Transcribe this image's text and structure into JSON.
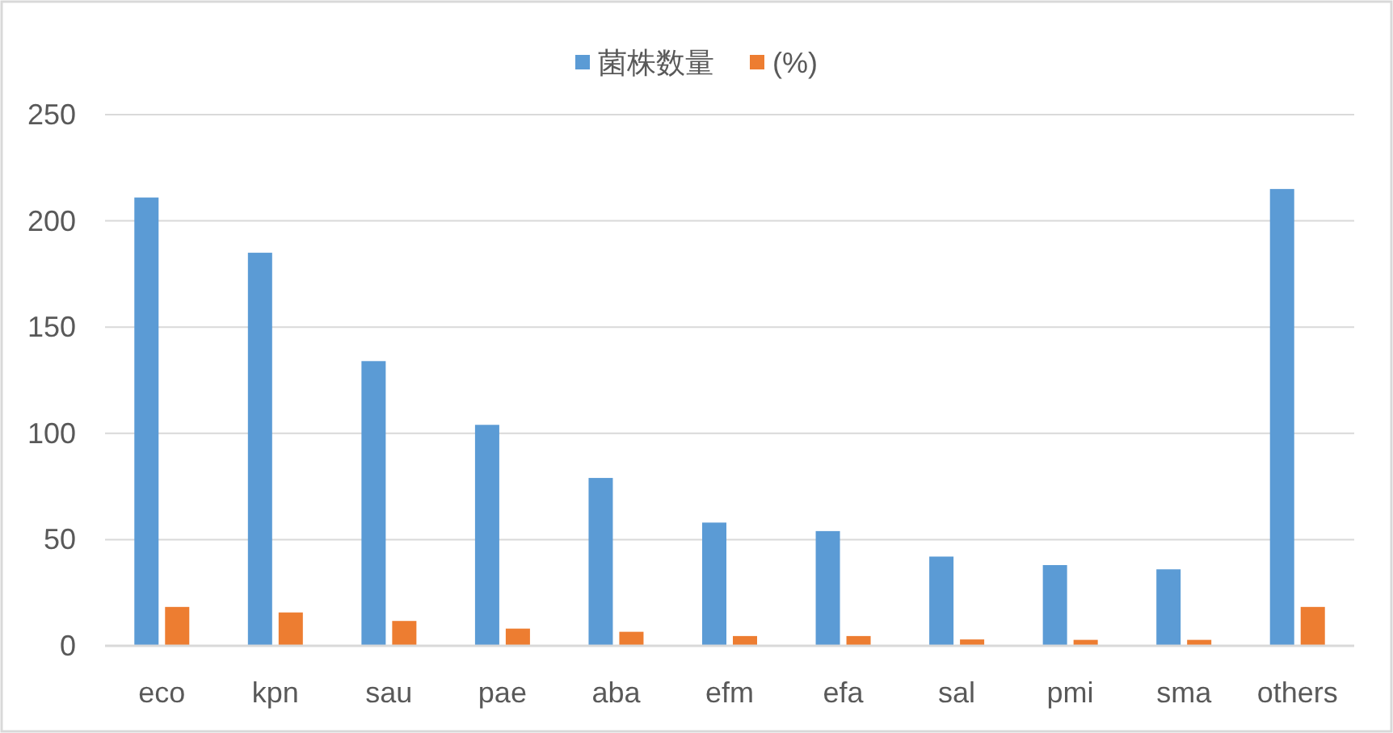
{
  "chart_data": {
    "type": "bar",
    "categories": [
      "eco",
      "kpn",
      "sau",
      "pae",
      "aba",
      "efm",
      "efa",
      "sal",
      "pmi",
      "sma",
      "others"
    ],
    "series": [
      {
        "name": "菌株数量",
        "color": "#5b9bd5",
        "values": [
          211,
          185,
          134,
          104,
          79,
          58,
          54,
          42,
          38,
          36,
          215
        ]
      },
      {
        "name": "(%)",
        "color": "#ed7d31",
        "values": [
          18.3,
          15.7,
          11.7,
          8.1,
          6.6,
          4.6,
          4.6,
          3.0,
          2.8,
          2.8,
          18.3
        ]
      }
    ],
    "ylim": [
      0,
      250
    ],
    "yticks": [
      0,
      50,
      100,
      150,
      200,
      250
    ],
    "grid": "y",
    "legend": "top"
  }
}
